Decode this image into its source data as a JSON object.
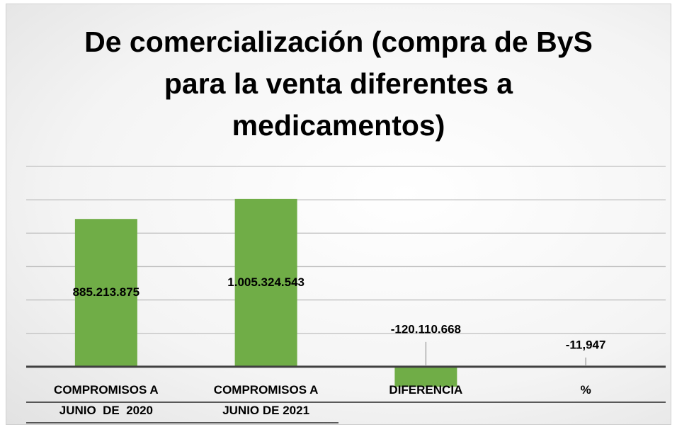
{
  "chart_data": {
    "type": "bar",
    "title": "De comercialización (compra de ByS para la venta diferentes a medicamentos)",
    "categories": [
      "COMPROMISOS A\nJUNIO  DE  2020",
      "COMPROMISOS A\nJUNIO DE 2021",
      "DIFERENCIA",
      "%"
    ],
    "values": [
      885213875,
      1005324543,
      -120110668,
      -11.947
    ],
    "value_labels": [
      "885.213.875",
      "1.005.324.543",
      "-120.110.668",
      "-11,947"
    ],
    "color": "#70ad47",
    "ylim": [
      -200000000,
      1200000000
    ],
    "yticks": [
      0,
      200000000,
      400000000,
      600000000,
      800000000,
      1000000000,
      1200000000
    ],
    "grid": true
  }
}
